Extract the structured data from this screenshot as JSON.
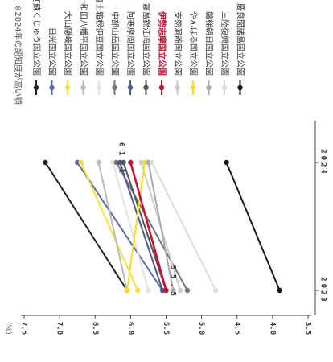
{
  "chart_data": {
    "type": "line",
    "title": "",
    "note": "※2024年の認知度が高い順",
    "y_unit_label": "(%)",
    "x": [
      "2023",
      "2024"
    ],
    "ylim": [
      3.5,
      7.5
    ],
    "yticks": [
      "3.5",
      "4.0",
      "4.5",
      "5.0",
      "5.5",
      "6.0",
      "6.5",
      "7.0",
      "7.5"
    ],
    "highlight_series": "伊勢志摩国立公園",
    "series": [
      {
        "name": "阿蘇くじゅう国立公園",
        "values": [
          6.05,
          7.2
        ],
        "color": "#222222"
      },
      {
        "name": "日光国立公園",
        "values": [
          5.55,
          6.75
        ],
        "color": "#5a6aa8"
      },
      {
        "name": "大山隠岐国立公園",
        "values": [
          5.9,
          6.7
        ],
        "color": "#f2e33c"
      },
      {
        "name": "十和田八幡平国立公園",
        "values": [
          6.05,
          6.45
        ],
        "color": "#bbbbbb"
      },
      {
        "name": "富士箱根伊豆国立公園",
        "values": [
          5.75,
          6.25
        ],
        "color": "#e3e3e3"
      },
      {
        "name": "中部山岳国立公園",
        "values": [
          5.2,
          6.2
        ],
        "color": "#777777"
      },
      {
        "name": "阿寒摩周国立公園",
        "values": [
          5.55,
          6.15
        ],
        "color": "#4a5a8e"
      },
      {
        "name": "霧島錦江湾国立公園",
        "values": [
          5.5,
          6.1
        ],
        "color": "#555555"
      },
      {
        "name": "伊勢志摩国立公園",
        "values": [
          5.5,
          6.0
        ],
        "color": "#c8102e"
      },
      {
        "name": "支笏洞爺国立公園",
        "values": [
          5.3,
          5.85
        ],
        "color": "#cccccc"
      },
      {
        "name": "やんばる国立公園",
        "values": [
          6.05,
          5.8
        ],
        "color": "#f6dd2a"
      },
      {
        "name": "磐梯朝日国立公園",
        "values": [
          5.4,
          5.75
        ],
        "color": "#aaaaaa"
      },
      {
        "name": "三陸復興国立公園",
        "values": [
          4.8,
          5.7
        ],
        "color": "#dddddd"
      },
      {
        "name": "慶良間諸島国立公園",
        "values": [
          3.9,
          4.65
        ],
        "color": "#1a1a1a"
      }
    ],
    "data_labels": [
      {
        "text": "6 1 . 1"
      },
      {
        "text": "5 5 . 5"
      }
    ],
    "grid": false,
    "legend_position": "right"
  }
}
